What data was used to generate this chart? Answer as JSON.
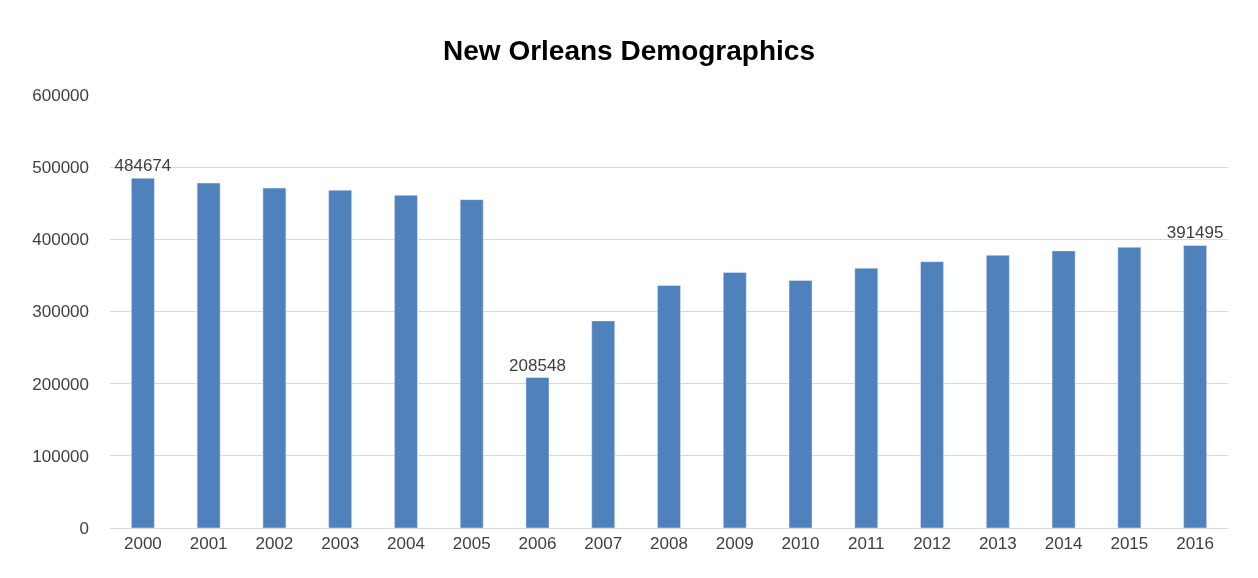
{
  "chart_data": {
    "type": "bar",
    "title": "New Orleans Demographics",
    "categories": [
      "2000",
      "2001",
      "2002",
      "2003",
      "2004",
      "2005",
      "2006",
      "2007",
      "2008",
      "2009",
      "2010",
      "2011",
      "2012",
      "2013",
      "2014",
      "2015",
      "2016"
    ],
    "values": [
      484674,
      478000,
      471000,
      468000,
      461000,
      455000,
      208548,
      287000,
      336000,
      354000,
      343000,
      360000,
      369000,
      378000,
      384000,
      389000,
      391495
    ],
    "value_labels": [
      "484674",
      null,
      null,
      null,
      null,
      null,
      "208548",
      null,
      null,
      null,
      null,
      null,
      null,
      null,
      null,
      null,
      "391495"
    ],
    "color": "#4f81bd",
    "ylim": [
      0,
      600000
    ],
    "yticks": [
      0,
      100000,
      200000,
      300000,
      400000,
      500000,
      600000
    ],
    "grid": "y"
  }
}
